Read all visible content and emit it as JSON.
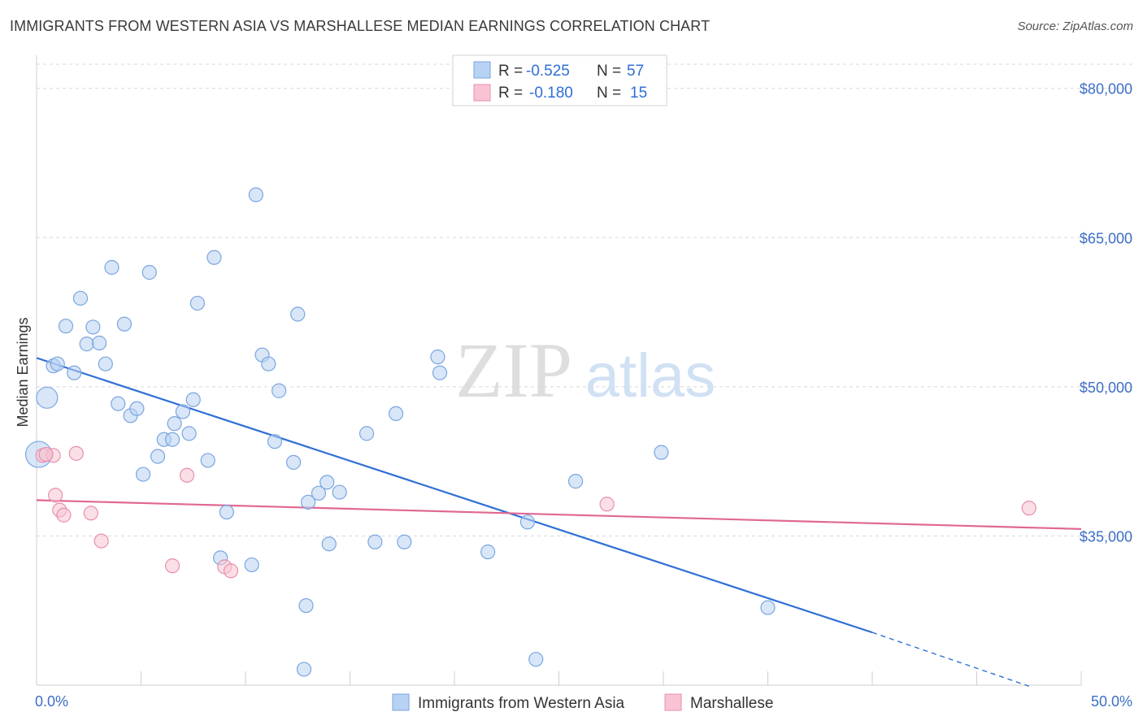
{
  "header": {
    "title": "IMMIGRANTS FROM WESTERN ASIA VS MARSHALLESE MEDIAN EARNINGS CORRELATION CHART",
    "source": "Source: ZipAtlas.com"
  },
  "watermark": {
    "zip": "ZIP",
    "atlas": "atlas"
  },
  "colors": {
    "blue_fill": "#b8d2f3",
    "blue_stroke": "#7aa6e0",
    "blue_line": "#2f6fd6",
    "pink_fill": "#f8c4d3",
    "pink_stroke": "#e88fab",
    "pink_line": "#e06892",
    "grid": "#d8d8d8",
    "tick_label": "#3d6fc6"
  },
  "chart_data": {
    "type": "scatter",
    "title": "IMMIGRANTS FROM WESTERN ASIA VS MARSHALLESE MEDIAN EARNINGS CORRELATION CHART",
    "xlabel": "",
    "ylabel": "Median Earnings",
    "xlim": [
      0,
      50
    ],
    "ylim": [
      20000,
      83000
    ],
    "x_tick_labels": [
      "0.0%",
      "50.0%"
    ],
    "y_ticks": [
      35000,
      50000,
      65000,
      80000
    ],
    "y_tick_labels": [
      "$35,000",
      "$50,000",
      "$65,000",
      "$80,000"
    ],
    "grid": true,
    "legend_position": "top-center",
    "stats": [
      {
        "r_label": "R = ",
        "r_value": "-0.525",
        "n_label": "N = ",
        "n_value": "57"
      },
      {
        "r_label": "R = ",
        "r_value": "-0.180",
        "n_label": "N = ",
        "n_value": "15"
      }
    ],
    "series": [
      {
        "name": "Immigrants from Western Asia",
        "color": "#b8d2f3",
        "trend": {
          "x": [
            0,
            40
          ],
          "y": [
            52900,
            25300
          ],
          "dashed_to": [
            47.5,
            19900
          ]
        },
        "points": [
          {
            "x": 0.1,
            "y": 43200,
            "big": 2
          },
          {
            "x": 0.5,
            "y": 48900,
            "big": 1
          },
          {
            "x": 0.8,
            "y": 52100
          },
          {
            "x": 1.0,
            "y": 52300
          },
          {
            "x": 1.4,
            "y": 56100
          },
          {
            "x": 1.8,
            "y": 51400
          },
          {
            "x": 2.1,
            "y": 58900
          },
          {
            "x": 2.4,
            "y": 54300
          },
          {
            "x": 2.7,
            "y": 56000
          },
          {
            "x": 3.0,
            "y": 54400
          },
          {
            "x": 3.3,
            "y": 52300
          },
          {
            "x": 3.6,
            "y": 62000
          },
          {
            "x": 3.9,
            "y": 48300
          },
          {
            "x": 4.2,
            "y": 56300
          },
          {
            "x": 4.5,
            "y": 47100
          },
          {
            "x": 4.8,
            "y": 47800
          },
          {
            "x": 5.1,
            "y": 41200
          },
          {
            "x": 5.4,
            "y": 61500
          },
          {
            "x": 5.8,
            "y": 43000
          },
          {
            "x": 6.1,
            "y": 44700
          },
          {
            "x": 6.5,
            "y": 44700
          },
          {
            "x": 6.6,
            "y": 46300
          },
          {
            "x": 7.0,
            "y": 47500
          },
          {
            "x": 7.3,
            "y": 45300
          },
          {
            "x": 7.5,
            "y": 48700
          },
          {
            "x": 7.7,
            "y": 58400
          },
          {
            "x": 8.2,
            "y": 42600
          },
          {
            "x": 8.5,
            "y": 63000
          },
          {
            "x": 8.8,
            "y": 32800
          },
          {
            "x": 9.1,
            "y": 37400
          },
          {
            "x": 10.3,
            "y": 32100
          },
          {
            "x": 10.5,
            "y": 69300
          },
          {
            "x": 10.8,
            "y": 53200
          },
          {
            "x": 11.1,
            "y": 52300
          },
          {
            "x": 11.4,
            "y": 44500
          },
          {
            "x": 11.6,
            "y": 49600
          },
          {
            "x": 12.3,
            "y": 42400
          },
          {
            "x": 12.5,
            "y": 57300
          },
          {
            "x": 12.8,
            "y": 21600
          },
          {
            "x": 12.9,
            "y": 28000
          },
          {
            "x": 13.0,
            "y": 38400
          },
          {
            "x": 13.5,
            "y": 39300
          },
          {
            "x": 13.9,
            "y": 40400
          },
          {
            "x": 14.0,
            "y": 34200
          },
          {
            "x": 14.5,
            "y": 39400
          },
          {
            "x": 15.8,
            "y": 45300
          },
          {
            "x": 16.2,
            "y": 34400
          },
          {
            "x": 17.2,
            "y": 47300
          },
          {
            "x": 17.6,
            "y": 34400
          },
          {
            "x": 19.2,
            "y": 53000
          },
          {
            "x": 19.3,
            "y": 51400
          },
          {
            "x": 21.6,
            "y": 33400
          },
          {
            "x": 23.5,
            "y": 36400
          },
          {
            "x": 23.9,
            "y": 22600
          },
          {
            "x": 25.8,
            "y": 40500
          },
          {
            "x": 29.9,
            "y": 43400
          },
          {
            "x": 35.0,
            "y": 27800
          }
        ]
      },
      {
        "name": "Marshallese",
        "color": "#f8c4d3",
        "trend": {
          "x": [
            0,
            50
          ],
          "y": [
            38600,
            35700
          ]
        },
        "points": [
          {
            "x": 0.3,
            "y": 43100
          },
          {
            "x": 0.8,
            "y": 43100
          },
          {
            "x": 0.9,
            "y": 39100
          },
          {
            "x": 1.1,
            "y": 37600
          },
          {
            "x": 1.3,
            "y": 37100
          },
          {
            "x": 1.9,
            "y": 43300
          },
          {
            "x": 2.6,
            "y": 37300
          },
          {
            "x": 3.1,
            "y": 34500
          },
          {
            "x": 6.5,
            "y": 32000
          },
          {
            "x": 7.2,
            "y": 41100
          },
          {
            "x": 9.0,
            "y": 31900
          },
          {
            "x": 9.3,
            "y": 31500
          },
          {
            "x": 27.3,
            "y": 38200
          },
          {
            "x": 47.5,
            "y": 37800
          },
          {
            "x": 0.45,
            "y": 43200
          }
        ]
      }
    ]
  }
}
